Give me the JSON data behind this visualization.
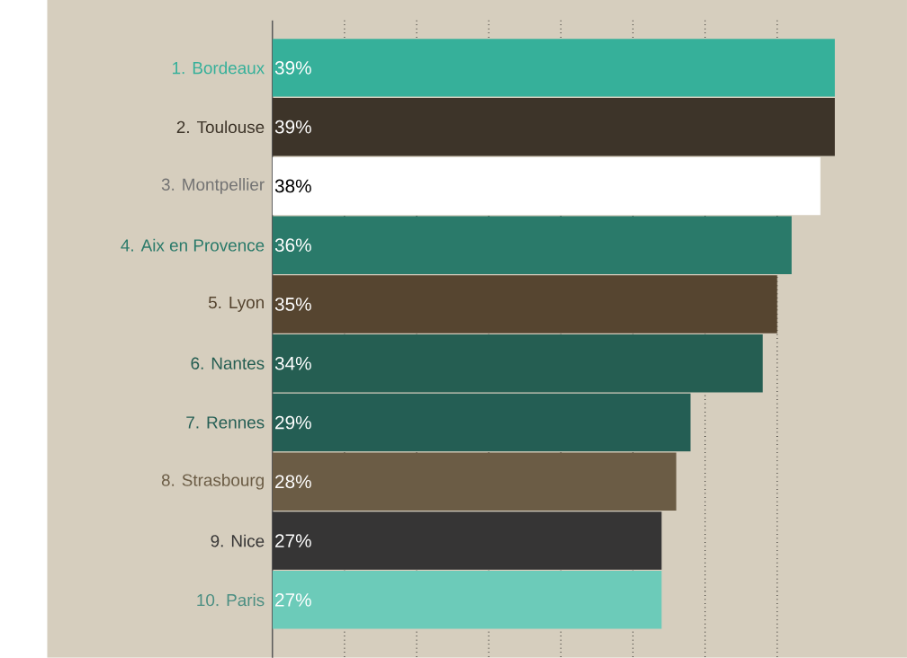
{
  "chart_data": {
    "type": "bar",
    "orientation": "horizontal",
    "categories": [
      "1. Bordeaux",
      "2. Toulouse",
      "3. Montpellier",
      "4. Aix en Provence",
      "5. Lyon",
      "6. Nantes",
      "7. Rennes",
      "8. Strasbourg",
      "9. Nice",
      "10. Paris"
    ],
    "values": [
      39,
      39,
      38,
      36,
      35,
      34,
      29,
      28,
      27,
      27
    ],
    "value_labels": [
      "39%",
      "39%",
      "38%",
      "36%",
      "35%",
      "34%",
      "29%",
      "28%",
      "27%",
      "27%"
    ],
    "colors": [
      "#36b09a",
      "#3d3429",
      "#ffffff",
      "#2a7a6a",
      "#564530",
      "#255e52",
      "#245e54",
      "#6b5c45",
      "#363535",
      "#6ccbb9"
    ],
    "xlim": [
      0,
      44
    ],
    "xticks": [
      {
        "value": 5,
        "label": null
      },
      {
        "value": 10,
        "label": null
      },
      {
        "value": 15,
        "label": null
      },
      {
        "value": 20,
        "label": null
      },
      {
        "value": 25,
        "label": null
      },
      {
        "value": 30,
        "label": null
      },
      {
        "value": 35,
        "label": null
      }
    ],
    "grid": "x",
    "tick_labels": "y"
  }
}
